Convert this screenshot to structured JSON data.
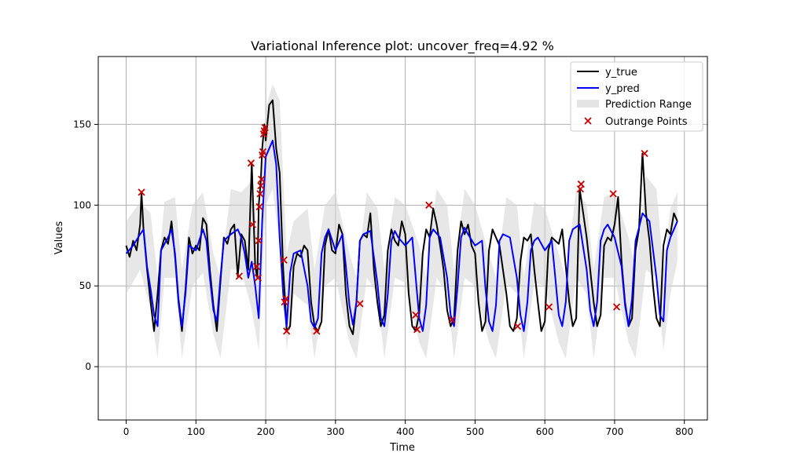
{
  "chart_data": {
    "type": "line",
    "title": "Variational Inference plot: uncover_freq=4.92 %",
    "xlabel": "Time",
    "ylabel": "Values",
    "xlim": [
      -40,
      833
    ],
    "ylim": [
      -33,
      192
    ],
    "xticks": [
      0,
      100,
      200,
      300,
      400,
      500,
      600,
      700,
      800
    ],
    "yticks": [
      0,
      50,
      100,
      150
    ],
    "grid": true,
    "legend_position": "top-right",
    "legend": [
      "y_true",
      "y_pred",
      "Prediction Range",
      "Outrange Points"
    ],
    "series_styles": {
      "y_true": "#000000",
      "y_pred": "#0000ff",
      "range": "#d3d3d3",
      "outrange": "#cc0000"
    },
    "series": [
      {
        "name": "y_true",
        "type": "line",
        "x": [
          0,
          5,
          10,
          15,
          20,
          22,
          25,
          30,
          35,
          40,
          45,
          50,
          55,
          60,
          65,
          70,
          75,
          80,
          85,
          90,
          95,
          100,
          105,
          110,
          115,
          120,
          125,
          130,
          135,
          140,
          145,
          150,
          155,
          160,
          165,
          170,
          175,
          180,
          185,
          188,
          190,
          193,
          195,
          198,
          200,
          205,
          210,
          215,
          220,
          225,
          228,
          230,
          235,
          240,
          245,
          250,
          255,
          260,
          265,
          270,
          275,
          280,
          285,
          290,
          295,
          300,
          305,
          310,
          315,
          320,
          325,
          330,
          335,
          340,
          345,
          350,
          355,
          360,
          365,
          370,
          375,
          380,
          385,
          390,
          395,
          400,
          405,
          410,
          415,
          420,
          425,
          430,
          435,
          440,
          445,
          450,
          455,
          460,
          465,
          470,
          475,
          480,
          485,
          490,
          495,
          500,
          505,
          510,
          515,
          520,
          525,
          530,
          535,
          540,
          545,
          550,
          555,
          560,
          565,
          570,
          575,
          580,
          585,
          590,
          595,
          600,
          605,
          610,
          615,
          620,
          625,
          630,
          635,
          640,
          645,
          650,
          655,
          660,
          665,
          670,
          675,
          680,
          685,
          690,
          695,
          700,
          705,
          710,
          715,
          720,
          725,
          730,
          735,
          740,
          745,
          750,
          755,
          760,
          765,
          770,
          775,
          780,
          785,
          790
        ],
        "y": [
          75,
          68,
          78,
          72,
          88,
          108,
          84,
          60,
          40,
          22,
          45,
          72,
          80,
          76,
          90,
          68,
          40,
          22,
          48,
          80,
          70,
          75,
          72,
          92,
          88,
          60,
          38,
          22,
          52,
          80,
          76,
          85,
          88,
          56,
          82,
          78,
          60,
          126,
          62,
          55,
          100,
          115,
          135,
          150,
          140,
          162,
          165,
          135,
          120,
          60,
          40,
          22,
          25,
          62,
          70,
          68,
          75,
          72,
          40,
          25,
          22,
          28,
          75,
          85,
          72,
          70,
          88,
          82,
          45,
          25,
          20,
          40,
          78,
          82,
          80,
          95,
          60,
          40,
          25,
          32,
          72,
          85,
          78,
          75,
          90,
          82,
          45,
          25,
          22,
          33,
          70,
          85,
          80,
          98,
          88,
          75,
          60,
          35,
          25,
          30,
          72,
          90,
          82,
          88,
          75,
          70,
          40,
          22,
          28,
          72,
          85,
          80,
          75,
          60,
          45,
          25,
          22,
          30,
          65,
          80,
          78,
          82,
          60,
          40,
          22,
          28,
          72,
          80,
          78,
          76,
          85,
          62,
          40,
          25,
          30,
          110,
          95,
          80,
          60,
          40,
          25,
          32,
          75,
          80,
          78,
          88,
          105,
          65,
          40,
          25,
          30,
          72,
          85,
          132,
          95,
          78,
          50,
          30,
          25,
          75,
          85,
          82,
          95,
          90
        ],
        "color": "#000000"
      },
      {
        "name": "y_pred",
        "type": "line",
        "x": [
          0,
          10,
          20,
          25,
          30,
          35,
          40,
          45,
          50,
          60,
          65,
          70,
          75,
          80,
          85,
          90,
          100,
          110,
          115,
          120,
          125,
          130,
          135,
          140,
          150,
          160,
          165,
          170,
          175,
          180,
          185,
          190,
          195,
          200,
          205,
          210,
          215,
          220,
          225,
          230,
          235,
          240,
          250,
          260,
          265,
          270,
          275,
          280,
          285,
          290,
          300,
          310,
          315,
          320,
          325,
          330,
          335,
          340,
          350,
          360,
          365,
          370,
          375,
          380,
          385,
          390,
          400,
          410,
          415,
          420,
          425,
          430,
          435,
          440,
          450,
          460,
          465,
          470,
          475,
          480,
          485,
          490,
          500,
          510,
          515,
          520,
          525,
          530,
          535,
          540,
          550,
          560,
          565,
          570,
          575,
          580,
          585,
          590,
          600,
          610,
          615,
          620,
          625,
          630,
          635,
          640,
          650,
          660,
          665,
          670,
          675,
          680,
          685,
          690,
          700,
          710,
          715,
          720,
          725,
          730,
          735,
          740,
          750,
          760,
          765,
          770,
          775,
          780,
          785,
          790
        ],
        "y": [
          70,
          75,
          82,
          85,
          62,
          48,
          32,
          25,
          72,
          80,
          85,
          70,
          42,
          25,
          45,
          75,
          72,
          85,
          78,
          55,
          35,
          28,
          55,
          78,
          82,
          85,
          80,
          70,
          55,
          65,
          50,
          30,
          90,
          130,
          135,
          140,
          125,
          80,
          45,
          25,
          58,
          70,
          72,
          50,
          28,
          24,
          30,
          70,
          80,
          85,
          72,
          82,
          62,
          38,
          26,
          40,
          78,
          82,
          84,
          52,
          30,
          25,
          45,
          78,
          84,
          80,
          75,
          80,
          55,
          30,
          22,
          38,
          80,
          85,
          80,
          55,
          32,
          25,
          50,
          80,
          86,
          82,
          75,
          78,
          48,
          28,
          22,
          38,
          78,
          82,
          80,
          55,
          32,
          22,
          40,
          72,
          78,
          80,
          72,
          78,
          55,
          32,
          25,
          40,
          78,
          85,
          88,
          60,
          35,
          25,
          40,
          78,
          85,
          88,
          80,
          62,
          38,
          25,
          42,
          78,
          86,
          95,
          90,
          55,
          32,
          28,
          72,
          80,
          85,
          90
        ],
        "color": "#0000ff"
      },
      {
        "name": "Prediction Range",
        "type": "band",
        "x": [
          0,
          20,
          35,
          45,
          55,
          70,
          80,
          95,
          110,
          125,
          135,
          150,
          165,
          180,
          190,
          200,
          210,
          220,
          230,
          240,
          260,
          270,
          285,
          300,
          320,
          330,
          345,
          360,
          370,
          385,
          400,
          420,
          430,
          445,
          460,
          470,
          485,
          500,
          520,
          530,
          545,
          560,
          570,
          585,
          600,
          620,
          630,
          645,
          660,
          670,
          685,
          700,
          720,
          730,
          745,
          760,
          770,
          780,
          790
        ],
        "upper": [
          90,
          102,
          95,
          55,
          102,
          105,
          60,
          100,
          108,
          70,
          55,
          110,
          108,
          115,
          75,
          160,
          175,
          165,
          70,
          90,
          98,
          60,
          100,
          108,
          70,
          55,
          108,
          98,
          60,
          105,
          100,
          75,
          55,
          110,
          100,
          60,
          110,
          100,
          70,
          55,
          105,
          100,
          55,
          102,
          98,
          70,
          55,
          110,
          100,
          60,
          105,
          108,
          80,
          60,
          118,
          110,
          60,
          98,
          108
        ],
        "lower": [
          45,
          60,
          35,
          5,
          55,
          55,
          5,
          50,
          58,
          20,
          5,
          60,
          60,
          35,
          10,
          100,
          110,
          75,
          10,
          45,
          38,
          5,
          50,
          55,
          15,
          5,
          55,
          45,
          5,
          55,
          52,
          15,
          5,
          55,
          45,
          5,
          55,
          50,
          15,
          5,
          52,
          45,
          5,
          52,
          50,
          15,
          5,
          55,
          45,
          5,
          55,
          55,
          15,
          5,
          60,
          55,
          10,
          45,
          65
        ],
        "color": "#d3d3d3"
      },
      {
        "name": "Outrange Points",
        "type": "scatter",
        "points": [
          [
            22,
            108
          ],
          [
            162,
            56
          ],
          [
            179,
            126
          ],
          [
            181,
            88
          ],
          [
            187,
            62
          ],
          [
            189,
            55
          ],
          [
            190,
            78
          ],
          [
            191,
            99
          ],
          [
            192,
            107
          ],
          [
            193,
            112
          ],
          [
            194,
            116
          ],
          [
            195,
            131
          ],
          [
            196,
            133
          ],
          [
            197,
            144
          ],
          [
            198,
            146
          ],
          [
            199,
            148
          ],
          [
            226,
            66
          ],
          [
            227,
            40
          ],
          [
            229,
            42
          ],
          [
            230,
            22
          ],
          [
            273,
            22
          ],
          [
            335,
            39
          ],
          [
            415,
            32
          ],
          [
            417,
            23
          ],
          [
            434,
            100
          ],
          [
            467,
            29
          ],
          [
            561,
            25
          ],
          [
            606,
            37
          ],
          [
            651,
            110
          ],
          [
            652,
            113
          ],
          [
            698,
            107
          ],
          [
            703,
            37
          ],
          [
            743,
            132
          ]
        ],
        "color": "#cc0000"
      }
    ]
  }
}
